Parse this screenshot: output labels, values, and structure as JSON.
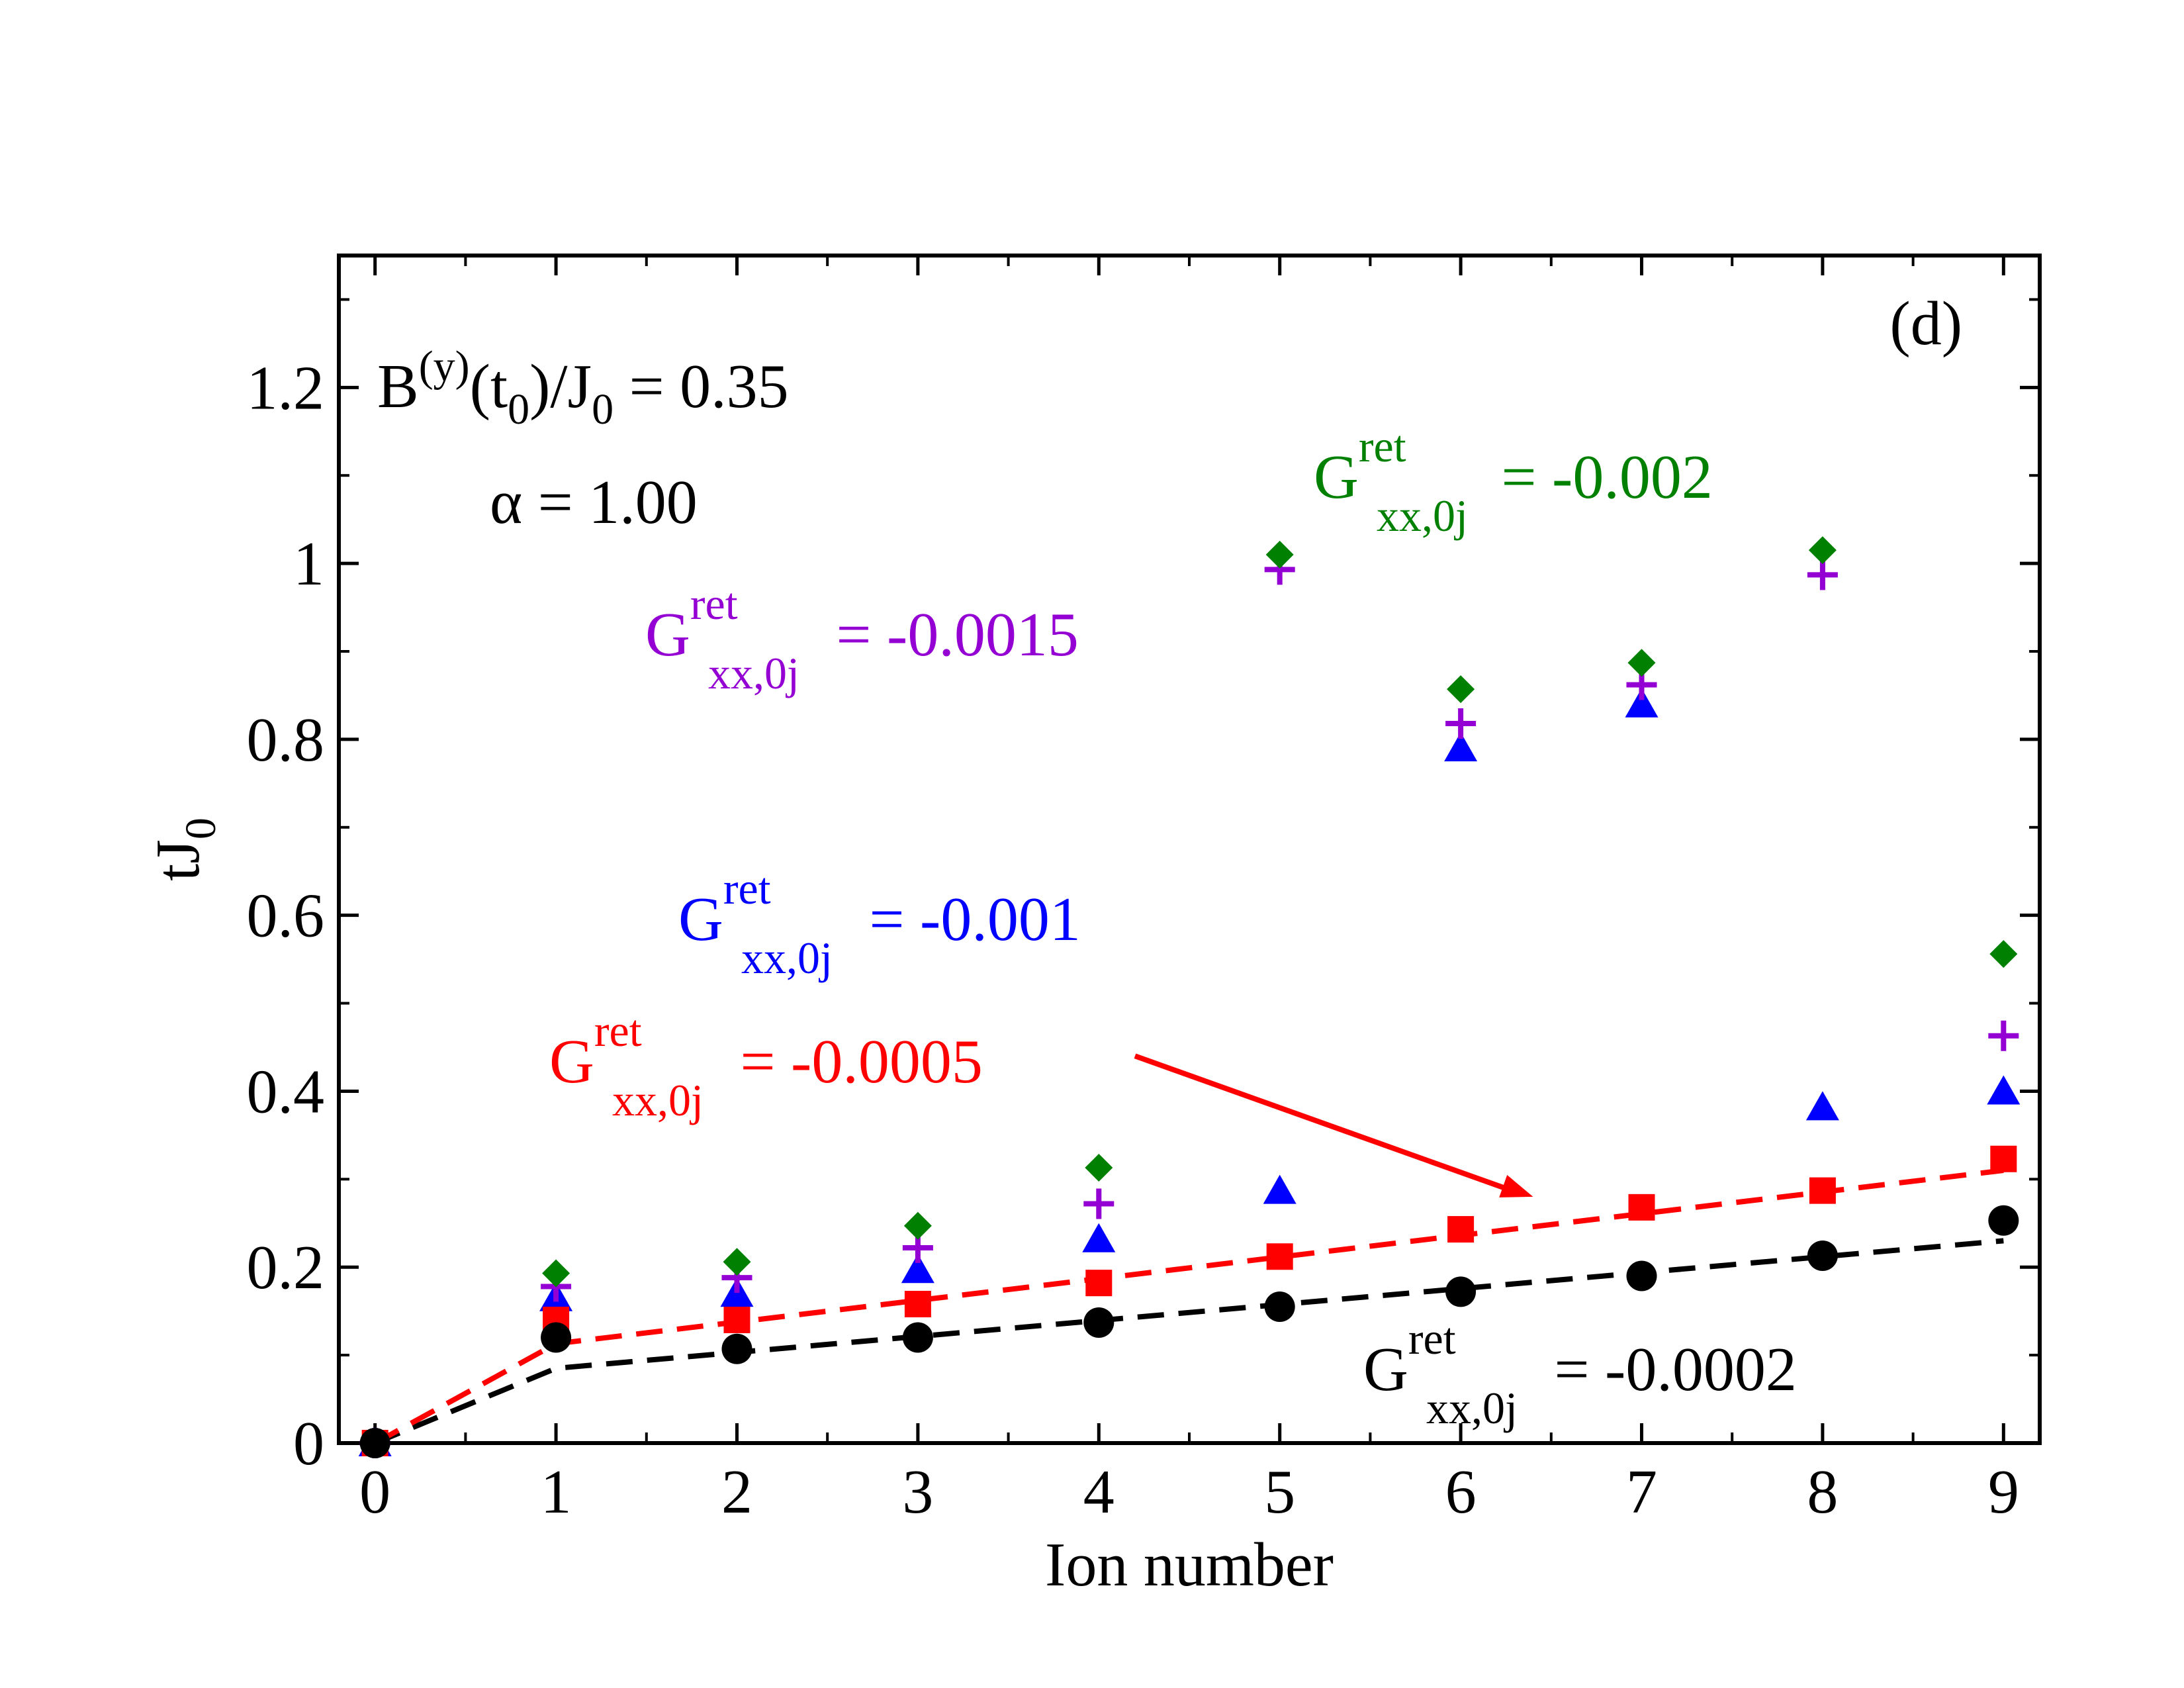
{
  "chart_data": {
    "type": "scatter",
    "panel_label": "(d)",
    "xlabel": "Ion number",
    "ylabel_main": "tJ",
    "ylabel_sub": "0",
    "xlim": [
      -0.2,
      9.2
    ],
    "ylim": [
      0,
      1.35
    ],
    "x_ticks": [
      0,
      1,
      2,
      3,
      4,
      5,
      6,
      7,
      8,
      9
    ],
    "x_tick_labels": [
      "0",
      "1",
      "2",
      "3",
      "4",
      "5",
      "6",
      "7",
      "8",
      "9"
    ],
    "y_ticks": [
      0,
      0.2,
      0.4,
      0.6,
      0.8,
      1.0,
      1.2
    ],
    "y_tick_labels": [
      "0",
      "0.2",
      "0.4",
      "0.6",
      "0.8",
      "1",
      "1.2"
    ],
    "params": {
      "b_main": "B",
      "b_sup": "(y)",
      "b_open": "(t",
      "b_sub0": "0",
      "b_mid": ")/J",
      "b_sub1": "0",
      "b_value": " = 0.35",
      "alpha_symbol": "α",
      "alpha_value": " = 1.00"
    },
    "series": [
      {
        "name": "G_ret -0.0002",
        "marker": "circle",
        "color": "#000000",
        "x": [
          0,
          1,
          2,
          3,
          4,
          5,
          6,
          7,
          8,
          9
        ],
        "y": [
          0.0,
          0.12,
          0.107,
          0.12,
          0.137,
          0.155,
          0.172,
          0.19,
          0.213,
          0.253
        ],
        "fit": [
          [
            0,
            0.0
          ],
          [
            1,
            0.085
          ],
          [
            9,
            0.23
          ]
        ],
        "label": {
          "G": "G",
          "sup": "ret",
          "sub": "xx,0j",
          "value": " = -0.0002"
        }
      },
      {
        "name": "G_ret -0.0005",
        "marker": "square",
        "color": "#ff0000",
        "x": [
          0,
          1,
          2,
          3,
          4,
          5,
          6,
          7,
          8,
          9
        ],
        "y": [
          0.0,
          0.14,
          0.14,
          0.158,
          0.182,
          0.212,
          0.243,
          0.268,
          0.287,
          0.323
        ],
        "fit": [
          [
            0,
            0.0
          ],
          [
            1,
            0.113
          ],
          [
            9,
            0.31
          ]
        ],
        "label": {
          "G": "G",
          "sup": "ret",
          "sub": "xx,0j",
          "value": " = -0.0005"
        }
      },
      {
        "name": "G_ret -0.001",
        "marker": "triangle",
        "color": "#0000ff",
        "x": [
          0,
          1,
          2,
          3,
          4,
          5,
          6,
          7,
          8,
          9
        ],
        "y": [
          0.0,
          0.165,
          0.17,
          0.197,
          0.232,
          0.287,
          0.79,
          0.84,
          0.382,
          0.4
        ],
        "label": {
          "G": "G",
          "sup": "ret",
          "sub": "xx,0j",
          "value": " = -0.001"
        }
      },
      {
        "name": "G_ret -0.0015",
        "marker": "plus",
        "color": "#9400d3",
        "x": [
          0,
          1,
          2,
          3,
          4,
          5,
          6,
          7,
          8,
          9
        ],
        "y": [
          0.0,
          0.178,
          0.188,
          0.222,
          0.272,
          0.993,
          0.818,
          0.862,
          0.987,
          0.463
        ],
        "label": {
          "G": "G",
          "sup": "ret",
          "sub": "xx,0j",
          "value": " = -0.0015"
        }
      },
      {
        "name": "G_ret -0.002",
        "marker": "diamond",
        "color": "#008000",
        "x": [
          0,
          1,
          2,
          3,
          4,
          5,
          6,
          7,
          8,
          9
        ],
        "y": [
          0.0,
          0.193,
          0.206,
          0.247,
          0.313,
          1.01,
          0.857,
          0.887,
          1.015,
          0.556
        ],
        "label": {
          "G": "G",
          "sup": "ret",
          "sub": "xx,0j",
          "value": " = -0.002"
        }
      }
    ],
    "arrow": {
      "from": [
        4.2,
        0.44
      ],
      "to": [
        6.4,
        0.28
      ],
      "color": "#ff0000"
    }
  }
}
